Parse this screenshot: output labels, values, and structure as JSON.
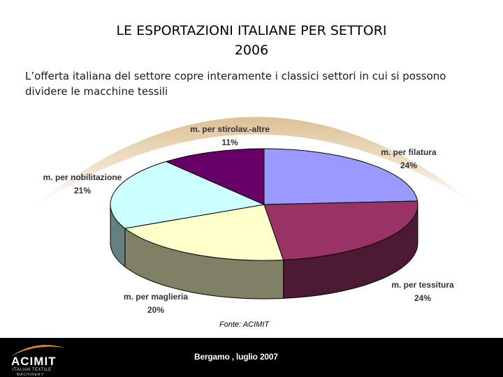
{
  "slide": {
    "title_line1": "LE ESPORTAZIONI ITALIANE PER SETTORI",
    "title_line2": "2006",
    "subtitle": "L’offerta italiana del settore copre interamente i classici settori in cui si possono dividere le macchine tessili",
    "source": "Fonte: ACIMIT",
    "footer_text": "Bergamo , luglio 2007"
  },
  "logo": {
    "name": "ACIMIT",
    "tagline1": "ITALIAN TEXTILE",
    "tagline2": "MACHINERY"
  },
  "chart_data": {
    "type": "pie",
    "style": "3d",
    "slices": [
      {
        "name": "m. per filatura",
        "value": 24,
        "label": "24%",
        "color": "#9999ff"
      },
      {
        "name": "m. per tessitura",
        "value": 24,
        "label": "24%",
        "color": "#993366"
      },
      {
        "name": "m. per maglieria",
        "value": 20,
        "label": "20%",
        "color": "#ffffcc"
      },
      {
        "name": "m. per nobilitazione",
        "value": 21,
        "label": "21%",
        "color": "#ccffff"
      },
      {
        "name": "m. per stirolav.-altre",
        "value": 11,
        "label": "11%",
        "color": "#660066"
      }
    ]
  }
}
